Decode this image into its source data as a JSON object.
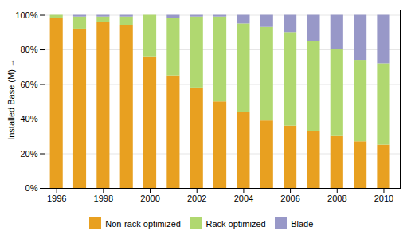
{
  "chart_data": {
    "type": "bar",
    "stacked": true,
    "x": [
      1996,
      1997,
      1998,
      1999,
      2000,
      2001,
      2002,
      2003,
      2004,
      2005,
      2006,
      2007,
      2008,
      2009,
      2010
    ],
    "series": [
      {
        "name": "Non-rack optimized",
        "color": "#E8A020",
        "values": [
          98,
          92,
          96,
          94,
          76,
          65,
          58,
          50,
          44,
          39,
          36,
          33,
          30,
          27,
          25
        ]
      },
      {
        "name": "Rack optimized",
        "color": "#B0D870",
        "values": [
          2,
          7,
          3,
          5,
          24,
          33,
          41,
          49,
          51,
          54,
          54,
          52,
          50,
          47,
          47
        ]
      },
      {
        "name": "Blade",
        "color": "#9898C8",
        "values": [
          0,
          1,
          1,
          1,
          0,
          2,
          1,
          1,
          5,
          7,
          10,
          15,
          20,
          26,
          28
        ]
      }
    ],
    "ylabel": "Installed Base (M)",
    "xlim": [
      1995.5,
      2010.7
    ],
    "xticks": [
      1996,
      1998,
      2000,
      2002,
      2004,
      2006,
      2008,
      2010
    ],
    "ylim": [
      0,
      103
    ],
    "yticks": [
      {
        "value": 0,
        "label": "0%"
      },
      {
        "value": 20,
        "label": "20%"
      },
      {
        "value": 40,
        "label": "40%"
      },
      {
        "value": 60,
        "label": "60%"
      },
      {
        "value": 80,
        "label": "80%"
      },
      {
        "value": 100,
        "label": "100%"
      }
    ],
    "grid": true,
    "legend": "bottom"
  }
}
